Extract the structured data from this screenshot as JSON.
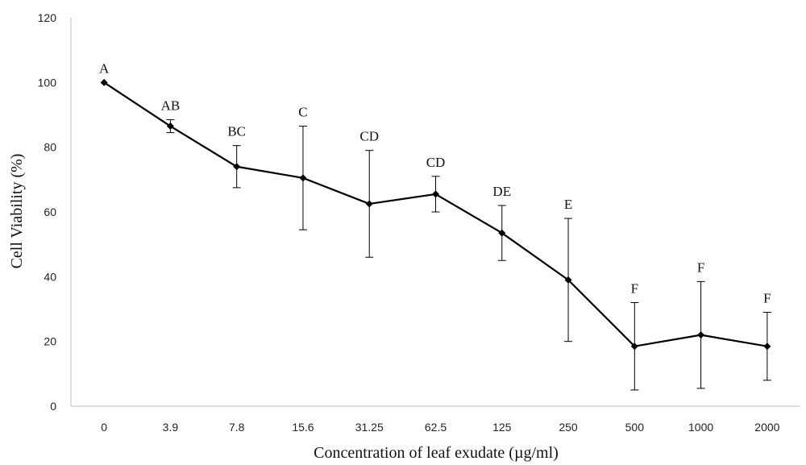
{
  "chart_data": {
    "type": "line",
    "title": "",
    "xlabel": "Concentration of leaf exudate  (µg/ml)",
    "ylabel": "Cell Viability (%)",
    "ylim": [
      0,
      120
    ],
    "yticks": [
      0,
      20,
      40,
      60,
      80,
      100,
      120
    ],
    "grid": false,
    "legend": "none",
    "categories": [
      "0",
      "3.9",
      "7.8",
      "15.6",
      "31.25",
      "62.5",
      "125",
      "250",
      "500",
      "1000",
      "2000"
    ],
    "series": [
      {
        "values": [
          100,
          86.5,
          74,
          70.5,
          62.5,
          65.5,
          53.5,
          39,
          18.5,
          22,
          18.5
        ],
        "error": [
          0,
          2,
          6.5,
          16,
          16.5,
          5.5,
          8.5,
          19,
          13.5,
          16.5,
          10.5
        ],
        "labels": [
          "A",
          "AB",
          "BC",
          "C",
          "CD",
          "CD",
          "DE",
          "E",
          "F",
          "F",
          "F"
        ]
      }
    ],
    "line_color": "#000000",
    "axis_color": "#bfbfbf"
  }
}
